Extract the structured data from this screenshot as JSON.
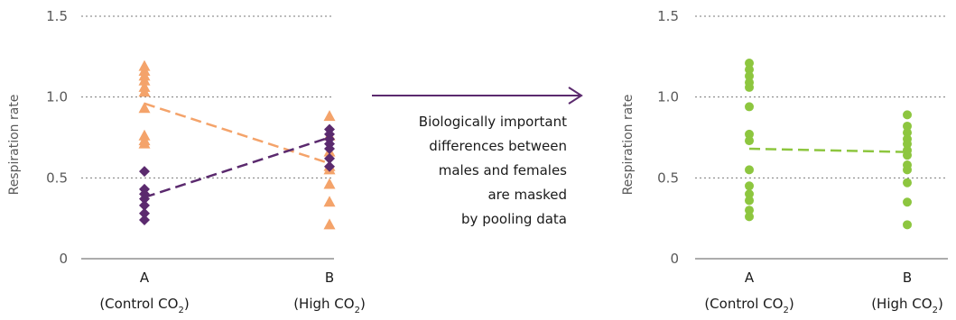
{
  "colors": {
    "orange": "#F4A36A",
    "purple": "#5B2A6E",
    "green": "#8DC63F",
    "grid": "#7a7a7a",
    "axis": "#595959",
    "arrow": "#5B2A6E"
  },
  "annotation": {
    "lines": [
      "Biologically important",
      "differences between",
      "males and females",
      "are masked",
      "by pooling data"
    ]
  },
  "chart_data": [
    {
      "type": "scatter",
      "ylabel": "Respiration rate",
      "ylim": [
        0,
        1.5
      ],
      "yticks": [
        {
          "value": 0,
          "label": "0"
        },
        {
          "value": 0.5,
          "label": "0.5"
        },
        {
          "value": 1.0,
          "label": "1.0"
        },
        {
          "value": 1.5,
          "label": "1.5"
        }
      ],
      "grid": true,
      "categories": [
        {
          "letter": "A",
          "label_main": "(Control CO",
          "label_sub": "2",
          "label_end": ")"
        },
        {
          "letter": "B",
          "label_main": "(High CO",
          "label_sub": "2",
          "label_end": ")"
        }
      ],
      "series": [
        {
          "marker": "triangle",
          "color_key": "orange",
          "values": {
            "A": [
              1.19,
              1.16,
              1.13,
              1.1,
              1.06,
              1.03,
              0.93,
              0.76,
              0.73,
              0.71
            ],
            "B": [
              0.88,
              0.76,
              0.66,
              0.57,
              0.55,
              0.46,
              0.35,
              0.21
            ]
          },
          "trend": [
            0.96,
            0.59
          ]
        },
        {
          "marker": "diamond",
          "color_key": "purple",
          "values": {
            "A": [
              0.54,
              0.43,
              0.4,
              0.37,
              0.33,
              0.28,
              0.24
            ],
            "B": [
              0.8,
              0.77,
              0.74,
              0.71,
              0.68,
              0.62,
              0.57
            ]
          },
          "trend": [
            0.38,
            0.75
          ]
        }
      ]
    },
    {
      "type": "scatter",
      "ylabel": "Respiration rate",
      "ylim": [
        0,
        1.5
      ],
      "yticks": [
        {
          "value": 0,
          "label": "0"
        },
        {
          "value": 0.5,
          "label": "0.5"
        },
        {
          "value": 1.0,
          "label": "1.0"
        },
        {
          "value": 1.5,
          "label": "1.5"
        }
      ],
      "grid": true,
      "categories": [
        {
          "letter": "A",
          "label_main": "(Control CO",
          "label_sub": "2",
          "label_end": ")"
        },
        {
          "letter": "B",
          "label_main": "(High CO",
          "label_sub": "2",
          "label_end": ")"
        }
      ],
      "series": [
        {
          "marker": "circle",
          "color_key": "green",
          "values": {
            "A": [
              1.21,
              1.17,
              1.13,
              1.09,
              1.06,
              0.94,
              0.77,
              0.73,
              0.55,
              0.45,
              0.4,
              0.36,
              0.3,
              0.26
            ],
            "B": [
              0.89,
              0.82,
              0.78,
              0.74,
              0.71,
              0.67,
              0.64,
              0.58,
              0.55,
              0.47,
              0.35,
              0.21
            ]
          },
          "trend": [
            0.68,
            0.66
          ]
        }
      ]
    }
  ]
}
